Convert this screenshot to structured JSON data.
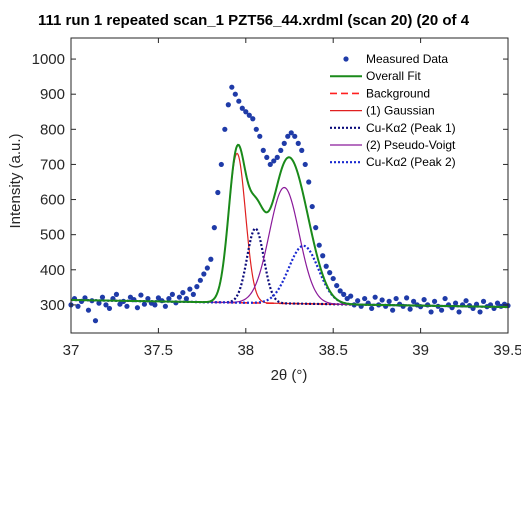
{
  "chart_data": {
    "type": "line",
    "title": "111 run 1 repeated scan_1 PZT56_44.xrdml (scan 20) (20 of 4",
    "xlabel": "2θ (°)",
    "ylabel": "Intensity (a.u.)",
    "xlim": [
      37,
      39.5
    ],
    "ylim": [
      220,
      1060
    ],
    "xticks": [
      37,
      37.5,
      38,
      38.5,
      39,
      39.5
    ],
    "xtick_labels": [
      "37",
      "37.5",
      "38",
      "38.5",
      "39",
      "39.5"
    ],
    "yticks": [
      300,
      400,
      500,
      600,
      700,
      800,
      900,
      1000
    ],
    "ytick_labels": [
      "300",
      "400",
      "500",
      "600",
      "700",
      "800",
      "900",
      "1000"
    ],
    "grid": false,
    "legend_position": "top-right",
    "colors": {
      "measured": "#1f3ba8",
      "overall": "#1a8a1a",
      "background": "#ff2020",
      "gaussian": "#e02020",
      "cuka1": "#0a0a7a",
      "pseudovoigt": "#8a1a9a",
      "cuka2": "#1a2ad0"
    },
    "model": {
      "background": {
        "slope": -8,
        "intercept_at_37": 314
      },
      "peaks": [
        {
          "name": "(1) Gaussian",
          "center": 37.95,
          "height": 425,
          "sigma": 0.048,
          "shape": "gaussian"
        },
        {
          "name": "Cu-Kα2 (Peak 1)",
          "center": 38.055,
          "height": 212,
          "sigma": 0.048,
          "shape": "gaussian"
        },
        {
          "name": "(2) Pseudo-Voigt",
          "center": 38.22,
          "height": 330,
          "sigma": 0.085,
          "shape": "gaussian"
        },
        {
          "name": "Cu-Kα2 (Peak 2)",
          "center": 38.33,
          "height": 165,
          "sigma": 0.085,
          "shape": "gaussian"
        }
      ]
    },
    "series": [
      {
        "name": "Measured Data",
        "style": "markers",
        "x": [
          37.0,
          37.02,
          37.04,
          37.06,
          37.08,
          37.1,
          37.12,
          37.14,
          37.16,
          37.18,
          37.2,
          37.22,
          37.24,
          37.26,
          37.28,
          37.3,
          37.32,
          37.34,
          37.36,
          37.38,
          37.4,
          37.42,
          37.44,
          37.46,
          37.48,
          37.5,
          37.52,
          37.54,
          37.56,
          37.58,
          37.6,
          37.62,
          37.64,
          37.66,
          37.68,
          37.7,
          37.72,
          37.74,
          37.76,
          37.78,
          37.8,
          37.82,
          37.84,
          37.86,
          37.88,
          37.9,
          37.92,
          37.94,
          37.96,
          37.98,
          38.0,
          38.02,
          38.04,
          38.06,
          38.08,
          38.1,
          38.12,
          38.14,
          38.16,
          38.18,
          38.2,
          38.22,
          38.24,
          38.26,
          38.28,
          38.3,
          38.32,
          38.34,
          38.36,
          38.38,
          38.4,
          38.42,
          38.44,
          38.46,
          38.48,
          38.5,
          38.52,
          38.54,
          38.56,
          38.58,
          38.6,
          38.62,
          38.64,
          38.66,
          38.68,
          38.7,
          38.72,
          38.74,
          38.76,
          38.78,
          38.8,
          38.82,
          38.84,
          38.86,
          38.88,
          38.9,
          38.92,
          38.94,
          38.96,
          38.98,
          39.0,
          39.02,
          39.04,
          39.06,
          39.08,
          39.1,
          39.12,
          39.14,
          39.16,
          39.18,
          39.2,
          39.22,
          39.24,
          39.26,
          39.28,
          39.3,
          39.32,
          39.34,
          39.36,
          39.38,
          39.4,
          39.42,
          39.44,
          39.46,
          39.48,
          39.5
        ],
        "y": [
          300,
          318,
          296,
          310,
          320,
          285,
          312,
          255,
          305,
          322,
          300,
          290,
          318,
          330,
          302,
          310,
          296,
          322,
          315,
          292,
          328,
          302,
          318,
          305,
          300,
          320,
          312,
          296,
          318,
          330,
          306,
          322,
          335,
          318,
          345,
          330,
          352,
          370,
          388,
          405,
          430,
          520,
          620,
          700,
          800,
          870,
          920,
          900,
          880,
          860,
          850,
          840,
          830,
          800,
          780,
          740,
          720,
          700,
          710,
          720,
          740,
          760,
          780,
          790,
          780,
          760,
          740,
          700,
          650,
          580,
          520,
          470,
          440,
          410,
          392,
          375,
          355,
          340,
          330,
          318,
          325,
          300,
          312,
          296,
          318,
          305,
          290,
          322,
          300,
          314,
          296,
          310,
          285,
          318,
          302,
          296,
          320,
          288,
          310,
          300,
          295,
          315,
          300,
          280,
          310,
          296,
          285,
          318,
          300,
          292,
          305,
          280,
          300,
          312,
          298,
          290,
          302,
          280,
          310,
          295,
          300,
          290,
          305,
          296,
          302,
          298
        ]
      },
      {
        "name": "Overall Fit",
        "style": "solid"
      },
      {
        "name": "Background",
        "style": "dashed"
      },
      {
        "name": "(1) Gaussian",
        "style": "solid"
      },
      {
        "name": "Cu-Kα2 (Peak 1)",
        "style": "dotted"
      },
      {
        "name": "(2) Pseudo-Voigt",
        "style": "solid"
      },
      {
        "name": "Cu-Kα2 (Peak 2)",
        "style": "dotted"
      }
    ]
  }
}
